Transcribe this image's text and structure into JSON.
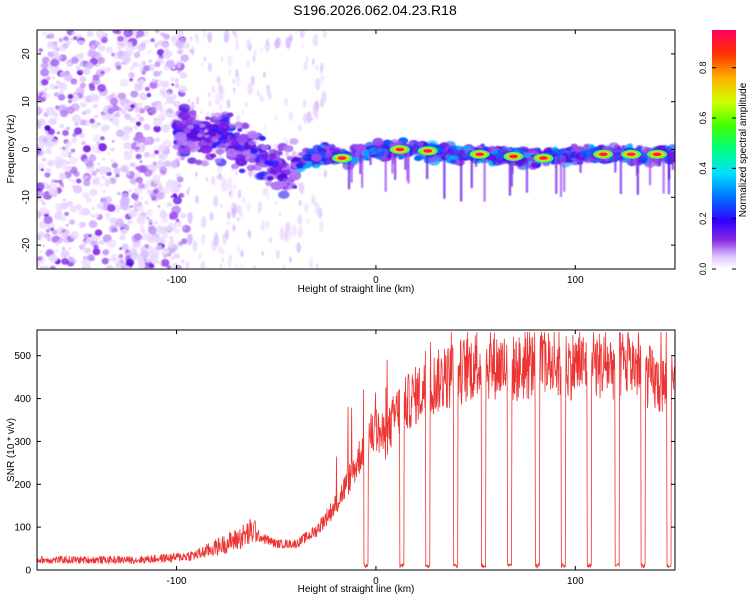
{
  "title": "S196.2026.062.04.23.R18",
  "chart_data": [
    {
      "type": "heatmap",
      "title": "S196.2026.062.04.23.R18",
      "xlabel": "Height of straight line (km)",
      "ylabel": "Frequency (Hz)",
      "xlim": [
        -170,
        150
      ],
      "ylim": [
        -25,
        25
      ],
      "x_ticks": [
        -100,
        0,
        100
      ],
      "y_ticks": [
        20,
        10,
        0,
        -10,
        -20
      ],
      "colorbar": {
        "label": "Normalized spectral amplitude",
        "range": [
          0.0,
          0.95
        ],
        "ticks": [
          "0.0",
          "0.2",
          "0.4",
          "0.6",
          "0.8"
        ],
        "colors": [
          "#ffffff",
          "#b070f0",
          "#6a00ff",
          "#0000ff",
          "#00c8ff",
          "#00ff60",
          "#c8ff00",
          "#ffcc00",
          "#ff5000",
          "#ff0050"
        ]
      },
      "trace": {
        "description_points_x": [
          -170,
          -100,
          -95,
          -85,
          -75,
          -65,
          -55,
          -45,
          -35,
          -25,
          -15,
          0,
          20,
          40,
          60,
          80,
          100,
          120,
          150
        ],
        "center_freq": [
          0,
          3,
          4,
          2,
          3,
          0,
          -3,
          -5,
          -2,
          -1,
          -2,
          0,
          0,
          -1,
          -1,
          -2,
          -1,
          -1,
          -1
        ]
      },
      "hot_spots_x": [
        -17,
        12,
        26,
        52,
        69,
        84,
        114,
        128,
        141
      ]
    },
    {
      "type": "line",
      "xlabel": "Height of straight line (km)",
      "ylabel": "SNR (10 * v/v)",
      "xlim": [
        -170,
        150
      ],
      "ylim": [
        0,
        560
      ],
      "x_ticks": [
        -100,
        0,
        100
      ],
      "y_ticks": [
        0,
        100,
        200,
        300,
        400,
        500
      ],
      "series": [
        {
          "name": "SNR",
          "color": "#ee3333",
          "envelope_x": [
            -170,
            -120,
            -100,
            -90,
            -80,
            -70,
            -60,
            -50,
            -40,
            -30,
            -20,
            -10,
            -5,
            0,
            5,
            10,
            20,
            30,
            40,
            50,
            60,
            70,
            80,
            90,
            100,
            110,
            120,
            130,
            140,
            147
          ],
          "envelope_y": [
            20,
            20,
            25,
            30,
            45,
            60,
            80,
            60,
            60,
            90,
            150,
            240,
            300,
            320,
            300,
            360,
            400,
            430,
            450,
            470,
            470,
            460,
            470,
            470,
            470,
            470,
            470,
            470,
            430,
            420
          ],
          "dropouts": [
            [
              -6,
              -4
            ],
            [
              12,
              14
            ],
            [
              25,
              27
            ],
            [
              39,
              41
            ],
            [
              53,
              55
            ],
            [
              66,
              68
            ],
            [
              80,
              82
            ],
            [
              93,
              95
            ],
            [
              106,
              108
            ],
            [
              120,
              122
            ],
            [
              133,
              135
            ],
            [
              146,
              148
            ]
          ]
        }
      ]
    }
  ]
}
